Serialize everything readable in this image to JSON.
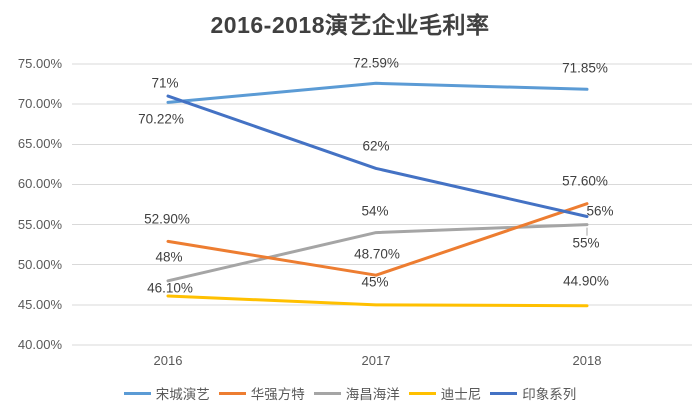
{
  "title": "2016-2018演艺企业毛利率",
  "chart_data": {
    "type": "line",
    "title": "2016-2018演艺企业毛利率",
    "categories": [
      "2016",
      "2017",
      "2018"
    ],
    "series": [
      {
        "name": "宋城演艺",
        "color": "#5B9BD5",
        "values": [
          70.22,
          72.59,
          71.85
        ],
        "labels": [
          {
            "text": "70.22%",
            "dx": -7,
            "dy": 17
          },
          {
            "text": "72.59%",
            "dx": 0,
            "dy": -20
          },
          {
            "text": "71.85%",
            "dx": -2,
            "dy": -21
          }
        ]
      },
      {
        "name": "华强方特",
        "color": "#ED7D31",
        "values": [
          52.9,
          48.7,
          57.6
        ],
        "labels": [
          {
            "text": "52.90%",
            "dx": -1,
            "dy": -22
          },
          {
            "text": "48.70%",
            "dx": 1,
            "dy": -21
          },
          {
            "text": "57.60%",
            "dx": -2,
            "dy": -23
          }
        ]
      },
      {
        "name": "海昌海洋",
        "color": "#A5A5A5",
        "values": [
          48,
          54,
          55
        ],
        "labels": [
          {
            "text": "48%",
            "dx": 1,
            "dy": -24
          },
          {
            "text": "54%",
            "dx": -1,
            "dy": -22
          },
          {
            "text": "55%",
            "dx": -1,
            "dy": 18,
            "leader": true
          }
        ]
      },
      {
        "name": "迪士尼",
        "color": "#FFC000",
        "values": [
          46.1,
          45,
          44.9
        ],
        "labels": [
          {
            "text": "46.10%",
            "dx": 2,
            "dy": -8
          },
          {
            "text": "45%",
            "dx": -1,
            "dy": -23
          },
          {
            "text": "44.90%",
            "dx": -1,
            "dy": -25
          }
        ]
      },
      {
        "name": "印象系列",
        "color": "#4472C4",
        "values": [
          71,
          62,
          56
        ],
        "labels": [
          {
            "text": "71%",
            "dx": -3,
            "dy": -13
          },
          {
            "text": "62%",
            "dx": 0,
            "dy": -22
          },
          {
            "text": "56%",
            "dx": 13,
            "dy": -6
          }
        ]
      }
    ],
    "y_axis": {
      "min": 40,
      "max": 75,
      "step": 5,
      "tick_labels_top_to_bottom": [
        "75.00%",
        "70.00%",
        "65.00%",
        "60.00%",
        "55.00%",
        "50.00%",
        "45.00%",
        "40.00%"
      ]
    },
    "x_axis": {
      "labels": [
        "2016",
        "2017",
        "2018"
      ]
    },
    "grid": true,
    "legend_position": "bottom",
    "draw_order": [
      0,
      2,
      3,
      1,
      4
    ],
    "colors": {
      "grid": "#D9D9D9",
      "title_text": "#404040",
      "axis_text": "#595959",
      "data_label_text": "#404040",
      "background": "#FFFFFF",
      "leader_line": "#A5A5A5"
    }
  }
}
